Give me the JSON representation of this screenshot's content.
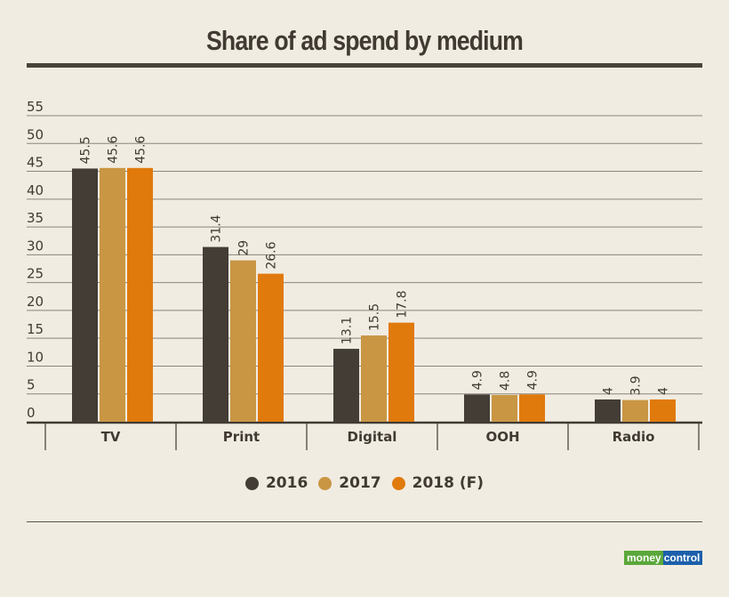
{
  "chart_data": {
    "type": "bar",
    "title": "Share of ad spend by medium",
    "xlabel": "",
    "ylabel": "",
    "ylim": [
      0,
      55
    ],
    "yticks": [
      0,
      5,
      10,
      15,
      20,
      25,
      30,
      35,
      40,
      45,
      50,
      55
    ],
    "grid": true,
    "legend_position": "bottom",
    "categories": [
      "TV",
      "Print",
      "Digital",
      "OOH",
      "Radio"
    ],
    "series": [
      {
        "name": "2016",
        "color": "#433d36",
        "values": [
          45.5,
          31.4,
          13.1,
          4.9,
          4
        ],
        "labels": [
          "45.5",
          "31.4",
          "13.1",
          "4.9",
          "4"
        ]
      },
      {
        "name": "2017",
        "color": "#c99643",
        "values": [
          45.6,
          29,
          15.5,
          4.8,
          3.9
        ],
        "labels": [
          "45.6",
          "29",
          "15.5",
          "4.8",
          "3.9"
        ]
      },
      {
        "name": "2018 (F)",
        "color": "#e07a0c",
        "values": [
          45.6,
          26.6,
          17.8,
          4.9,
          4
        ],
        "labels": [
          "45.6",
          "26.6",
          "17.8",
          "4.9",
          "4"
        ]
      }
    ]
  },
  "branding": {
    "logo_part1": "money",
    "logo_part2": "control"
  }
}
